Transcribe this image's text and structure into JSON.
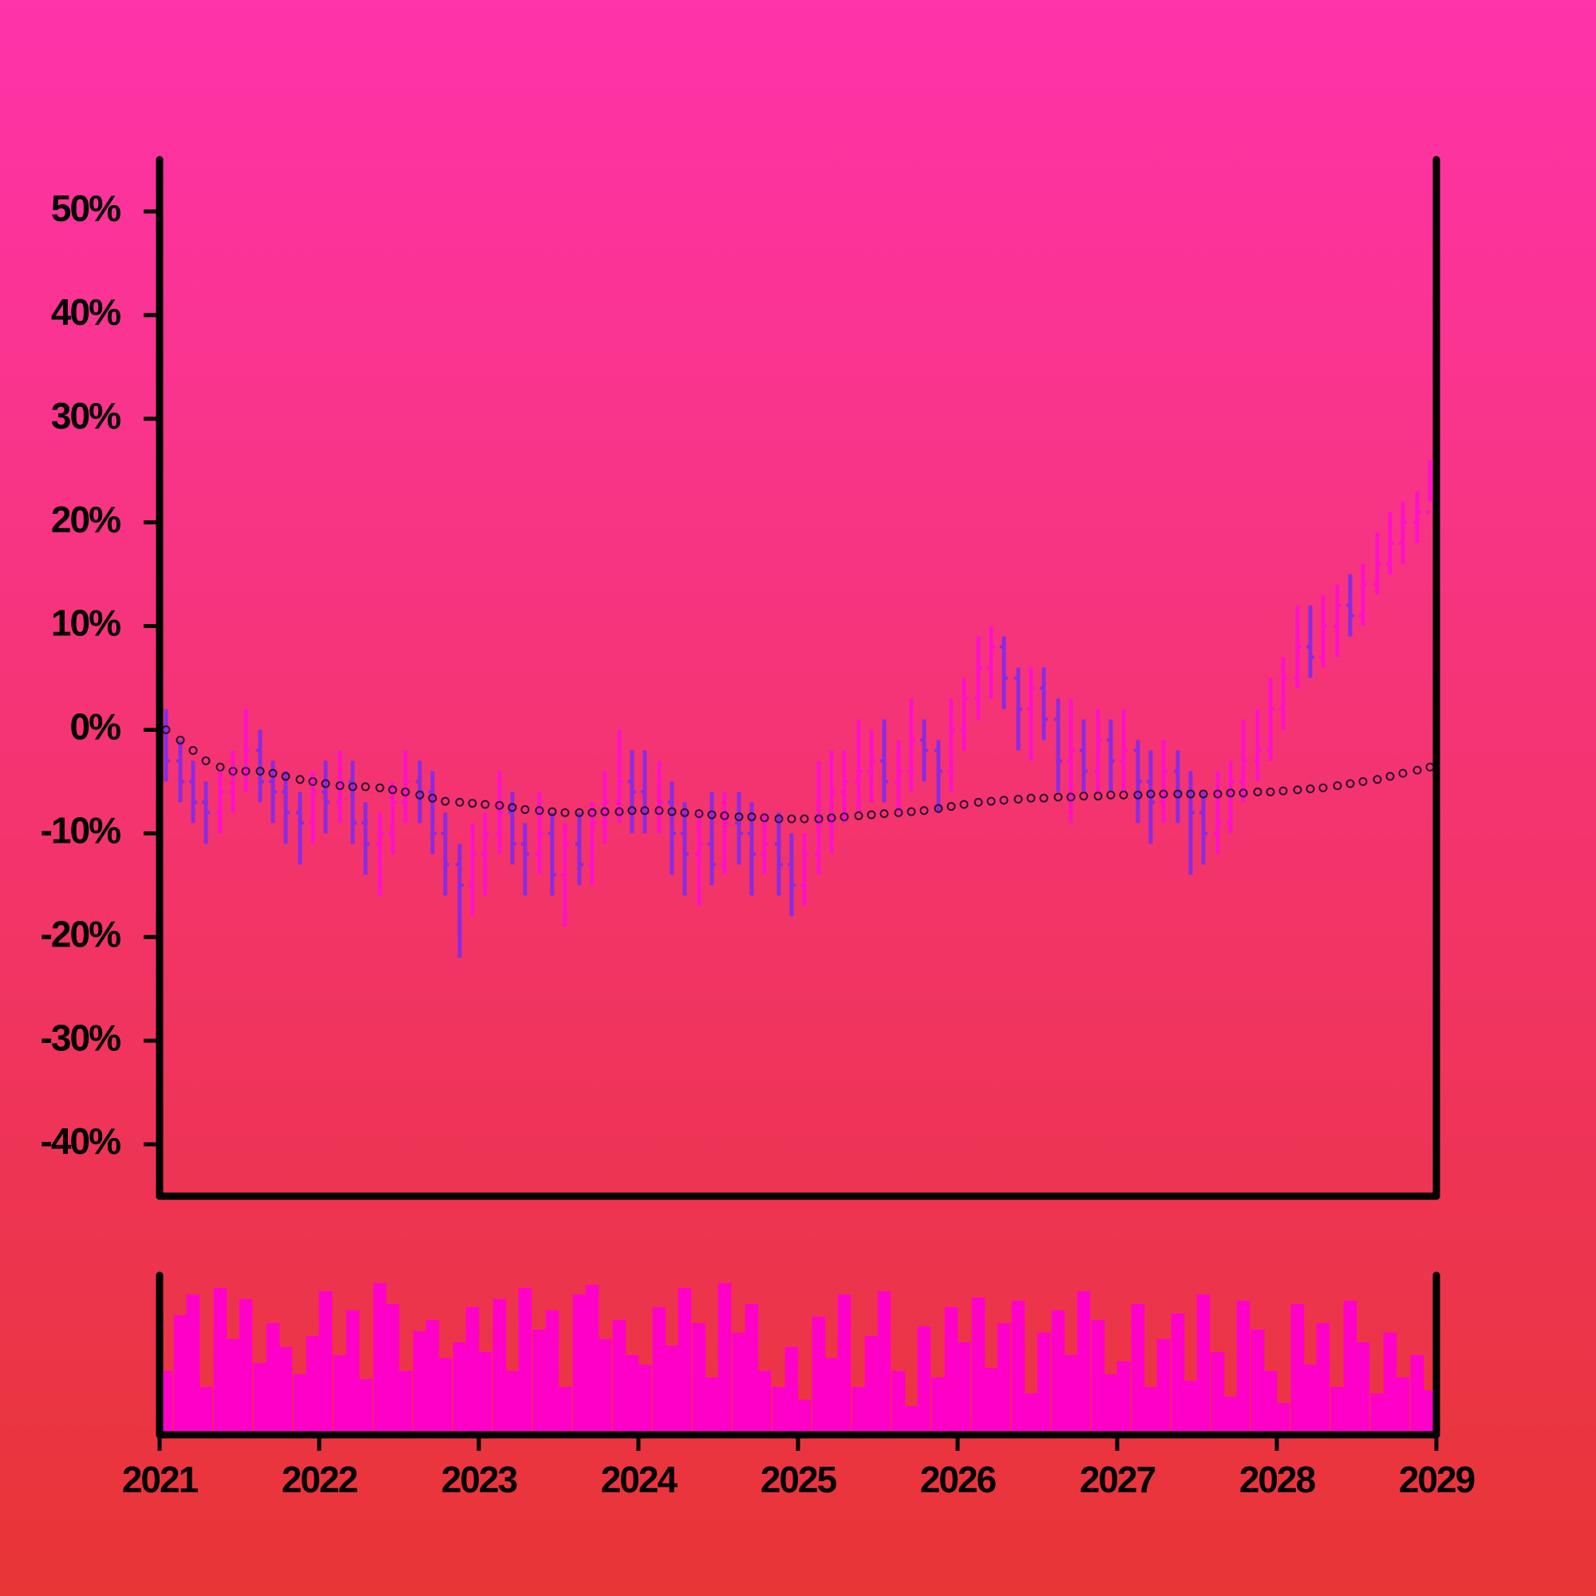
{
  "chart_data": {
    "type": "ohlc",
    "x": [
      2021.04,
      2021.13,
      2021.21,
      2021.29,
      2021.38,
      2021.46,
      2021.54,
      2021.63,
      2021.71,
      2021.79,
      2021.88,
      2021.96,
      2022.04,
      2022.13,
      2022.21,
      2022.29,
      2022.38,
      2022.46,
      2022.54,
      2022.63,
      2022.71,
      2022.79,
      2022.88,
      2022.96,
      2023.04,
      2023.13,
      2023.21,
      2023.29,
      2023.38,
      2023.46,
      2023.54,
      2023.63,
      2023.71,
      2023.79,
      2023.88,
      2023.96,
      2024.04,
      2024.13,
      2024.21,
      2024.29,
      2024.38,
      2024.46,
      2024.54,
      2024.63,
      2024.71,
      2024.79,
      2024.88,
      2024.96,
      2025.04,
      2025.13,
      2025.21,
      2025.29,
      2025.38,
      2025.46,
      2025.54,
      2025.63,
      2025.71,
      2025.79,
      2025.88,
      2025.96,
      2026.04,
      2026.13,
      2026.21,
      2026.29,
      2026.38,
      2026.46,
      2026.54,
      2026.63,
      2026.71,
      2026.79,
      2026.88,
      2026.96,
      2027.04,
      2027.13,
      2027.21,
      2027.29,
      2027.38,
      2027.46,
      2027.54,
      2027.63,
      2027.71,
      2027.79,
      2027.88,
      2027.96,
      2028.04,
      2028.13,
      2028.21,
      2028.29,
      2028.38,
      2028.46,
      2028.54,
      2028.63,
      2028.71,
      2028.79,
      2028.88,
      2028.96
    ],
    "open": [
      0,
      -3,
      -5,
      -7,
      -8,
      -6,
      -4,
      -2,
      -5,
      -6,
      -8,
      -9,
      -6,
      -7,
      -5,
      -9,
      -11,
      -10,
      -7,
      -5,
      -6,
      -10,
      -13,
      -15,
      -12,
      -10,
      -8,
      -11,
      -12,
      -10,
      -14,
      -11,
      -13,
      -9,
      -7,
      -5,
      -6,
      -8,
      -7,
      -10,
      -12,
      -11,
      -13,
      -9,
      -10,
      -12,
      -11,
      -13,
      -15,
      -12,
      -9,
      -6,
      -5,
      -4,
      -3,
      -5,
      -4,
      -1,
      -2,
      -4,
      0,
      3,
      6,
      8,
      5,
      2,
      4,
      1,
      -3,
      -2,
      -4,
      -1,
      -3,
      -2,
      -5,
      -7,
      -4,
      -6,
      -8,
      -10,
      -9,
      -5,
      -3,
      -2,
      2,
      5,
      8,
      7,
      10,
      12,
      11,
      14,
      16,
      18,
      20,
      21
    ],
    "high": [
      2,
      -1,
      -3,
      -5,
      -4,
      -2,
      2,
      0,
      -3,
      -4,
      -6,
      -4,
      -3,
      -2,
      -3,
      -7,
      -8,
      -5,
      -2,
      -3,
      -4,
      -8,
      -11,
      -9,
      -8,
      -4,
      -6,
      -9,
      -6,
      -8,
      -9,
      -8,
      -7,
      -4,
      0,
      -2,
      -2,
      -3,
      -5,
      -7,
      -8,
      -6,
      -6,
      -6,
      -7,
      -8,
      -8,
      -10,
      -10,
      -3,
      -2,
      -2,
      1,
      0,
      1,
      -1,
      3,
      1,
      -1,
      3,
      5,
      9,
      10,
      9,
      6,
      6,
      6,
      3,
      3,
      1,
      2,
      1,
      2,
      -1,
      -2,
      -1,
      -2,
      -4,
      -6,
      -4,
      -3,
      1,
      2,
      5,
      7,
      12,
      12,
      13,
      14,
      15,
      16,
      19,
      21,
      22,
      23,
      26
    ],
    "low": [
      -5,
      -7,
      -9,
      -11,
      -10,
      -8,
      -6,
      -7,
      -9,
      -11,
      -13,
      -11,
      -10,
      -9,
      -11,
      -14,
      -16,
      -12,
      -9,
      -9,
      -12,
      -16,
      -22,
      -18,
      -16,
      -12,
      -13,
      -16,
      -14,
      -16,
      -19,
      -15,
      -15,
      -11,
      -9,
      -10,
      -10,
      -10,
      -14,
      -16,
      -17,
      -15,
      -14,
      -13,
      -16,
      -14,
      -16,
      -18,
      -17,
      -14,
      -12,
      -9,
      -8,
      -7,
      -7,
      -8,
      -6,
      -5,
      -8,
      -6,
      -2,
      1,
      3,
      2,
      -2,
      -3,
      -1,
      -6,
      -9,
      -6,
      -6,
      -6,
      -6,
      -9,
      -11,
      -9,
      -9,
      -14,
      -13,
      -12,
      -10,
      -7,
      -5,
      -3,
      0,
      4,
      5,
      6,
      7,
      9,
      10,
      13,
      15,
      16,
      18,
      22
    ],
    "close": [
      -3,
      -5,
      -7,
      -8,
      -6,
      -4,
      -2,
      -5,
      -6,
      -8,
      -9,
      -6,
      -7,
      -5,
      -9,
      -11,
      -10,
      -7,
      -5,
      -6,
      -10,
      -13,
      -15,
      -12,
      -10,
      -8,
      -11,
      -12,
      -10,
      -14,
      -11,
      -13,
      -9,
      -7,
      -5,
      -6,
      -8,
      -7,
      -10,
      -12,
      -11,
      -13,
      -9,
      -10,
      -12,
      -11,
      -13,
      -15,
      -12,
      -9,
      -6,
      -5,
      -4,
      -3,
      -5,
      -4,
      -1,
      -2,
      -4,
      0,
      3,
      6,
      8,
      5,
      2,
      4,
      1,
      -3,
      -2,
      -4,
      -1,
      -3,
      -2,
      -5,
      -7,
      -4,
      -6,
      -8,
      -10,
      -9,
      -5,
      -3,
      -2,
      2,
      5,
      8,
      7,
      10,
      12,
      11,
      14,
      16,
      18,
      20,
      21,
      24
    ],
    "up_color": "#ff10c8",
    "down_color": "#8a2be2",
    "moving_average": {
      "color": "#2a1030",
      "values": [
        0,
        -1,
        -2,
        -3,
        -3.6,
        -4,
        -4,
        -4,
        -4.2,
        -4.5,
        -4.8,
        -5,
        -5.2,
        -5.4,
        -5.5,
        -5.5,
        -5.6,
        -5.8,
        -6,
        -6.3,
        -6.6,
        -6.9,
        -7,
        -7.1,
        -7.2,
        -7.3,
        -7.5,
        -7.7,
        -7.8,
        -7.9,
        -8,
        -8,
        -8,
        -7.9,
        -7.9,
        -7.8,
        -7.8,
        -7.8,
        -7.9,
        -8,
        -8.1,
        -8.2,
        -8.3,
        -8.4,
        -8.4,
        -8.5,
        -8.6,
        -8.6,
        -8.6,
        -8.6,
        -8.5,
        -8.4,
        -8.3,
        -8.2,
        -8.1,
        -8,
        -7.9,
        -7.8,
        -7.6,
        -7.4,
        -7.2,
        -7,
        -6.9,
        -6.8,
        -6.7,
        -6.6,
        -6.6,
        -6.5,
        -6.5,
        -6.4,
        -6.4,
        -6.3,
        -6.3,
        -6.3,
        -6.2,
        -6.2,
        -6.2,
        -6.2,
        -6.2,
        -6.2,
        -6.1,
        -6.1,
        -6,
        -6,
        -5.9,
        -5.8,
        -5.7,
        -5.6,
        -5.4,
        -5.2,
        -5,
        -4.8,
        -4.5,
        -4.2,
        -3.9,
        -3.6
      ]
    },
    "volume": {
      "color": "#ff00c8",
      "ylim": [
        0,
        100
      ],
      "values": [
        40,
        75,
        88,
        30,
        92,
        60,
        85,
        45,
        70,
        55,
        38,
        62,
        90,
        50,
        78,
        35,
        95,
        82,
        40,
        65,
        72,
        48,
        58,
        80,
        52,
        85,
        40,
        92,
        66,
        78,
        30,
        88,
        94,
        60,
        72,
        50,
        44,
        80,
        56,
        92,
        70,
        36,
        95,
        64,
        82,
        40,
        30,
        55,
        22,
        74,
        48,
        88,
        30,
        62,
        90,
        40,
        18,
        68,
        36,
        80,
        58,
        86,
        42,
        70,
        84,
        26,
        64,
        78,
        50,
        90,
        72,
        38,
        46,
        82,
        30,
        60,
        76,
        34,
        88,
        52,
        24,
        84,
        66,
        40,
        20,
        82,
        44,
        70,
        30,
        84,
        58,
        26,
        64,
        36,
        50,
        28
      ]
    },
    "xlim": [
      2021,
      2029
    ],
    "xticks": [
      2021,
      2022,
      2023,
      2024,
      2025,
      2026,
      2027,
      2028,
      2029
    ],
    "ylim": [
      -45,
      55
    ],
    "yticks": [
      {
        "value": -40,
        "label": "-40%"
      },
      {
        "value": -30,
        "label": "-30%"
      },
      {
        "value": -20,
        "label": "-20%"
      },
      {
        "value": -10,
        "label": "-10%"
      },
      {
        "value": 0,
        "label": "0%"
      },
      {
        "value": 10,
        "label": "10%"
      },
      {
        "value": 20,
        "label": "20%"
      },
      {
        "value": 30,
        "label": "30%"
      },
      {
        "value": 40,
        "label": "40%"
      },
      {
        "value": 50,
        "label": "50%"
      }
    ]
  }
}
